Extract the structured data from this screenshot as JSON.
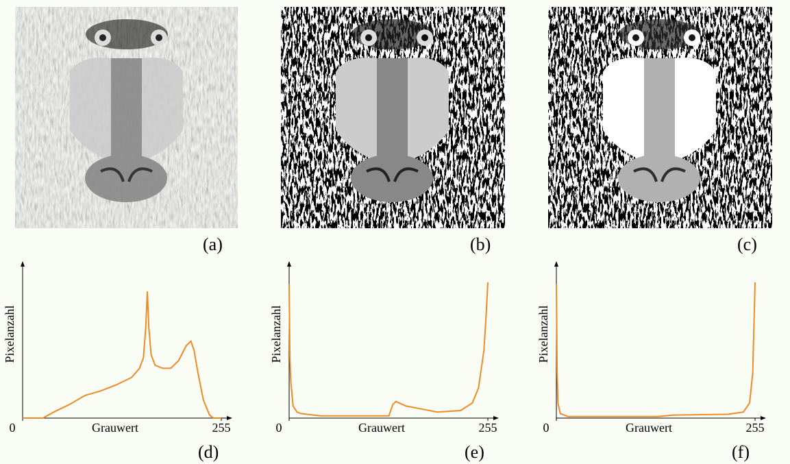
{
  "images": [
    {
      "caption": "(a)"
    },
    {
      "caption": "(b)"
    },
    {
      "caption": "(c)"
    }
  ],
  "chart_data": [
    {
      "type": "line",
      "caption": "(d)",
      "xlabel": "Grauwert",
      "ylabel": "Pixelanzahl",
      "color": "#f08a24",
      "xlim": [
        0,
        255
      ],
      "xticks": [
        0,
        255
      ],
      "ylim": [
        0,
        100
      ],
      "x": [
        0,
        20,
        26,
        40,
        60,
        80,
        100,
        120,
        140,
        150,
        155,
        158,
        160,
        162,
        165,
        170,
        180,
        190,
        200,
        210,
        216,
        220,
        225,
        232,
        240,
        245,
        255
      ],
      "values": [
        0,
        0,
        0,
        4,
        9,
        15,
        18,
        22,
        27,
        33,
        40,
        60,
        84,
        60,
        42,
        35,
        33,
        33,
        38,
        48,
        51,
        45,
        30,
        12,
        2,
        0,
        0
      ]
    },
    {
      "type": "line",
      "caption": "(e)",
      "xlabel": "Grauwert",
      "ylabel": "Pixelanzahl",
      "color": "#f08a24",
      "xlim": [
        0,
        255
      ],
      "xticks": [
        0,
        255
      ],
      "ylim": [
        0,
        100
      ],
      "x": [
        0,
        1,
        2,
        5,
        10,
        15,
        40,
        80,
        128,
        133,
        137,
        150,
        170,
        190,
        220,
        235,
        243,
        250,
        253,
        255
      ],
      "values": [
        89,
        40,
        25,
        8,
        4,
        3,
        1.5,
        1.5,
        1.5,
        9,
        11,
        8,
        6,
        4,
        5,
        10,
        20,
        45,
        70,
        90
      ]
    },
    {
      "type": "line",
      "caption": "(f)",
      "xlabel": "Grauwert",
      "ylabel": "Pixelanzahl",
      "color": "#f08a24",
      "xlim": [
        0,
        255
      ],
      "xticks": [
        0,
        255
      ],
      "ylim": [
        0,
        100
      ],
      "x": [
        0,
        1,
        2,
        5,
        15,
        60,
        130,
        150,
        220,
        240,
        248,
        252,
        255
      ],
      "values": [
        89,
        30,
        10,
        3,
        1,
        1,
        1,
        2,
        2.5,
        4,
        10,
        30,
        90
      ]
    }
  ]
}
